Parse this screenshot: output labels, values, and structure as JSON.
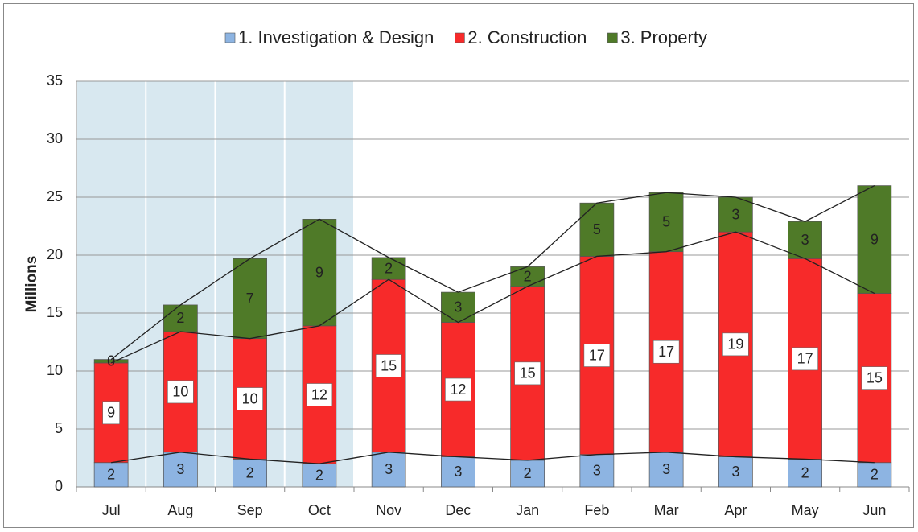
{
  "chart_data": {
    "type": "stacked_bar",
    "categories": [
      "Jul",
      "Aug",
      "Sep",
      "Oct",
      "Nov",
      "Dec",
      "Jan",
      "Feb",
      "Mar",
      "Apr",
      "May",
      "Jun"
    ],
    "y_label": "Millions",
    "ylim": [
      0,
      35
    ],
    "yticks": [
      0,
      5,
      10,
      15,
      20,
      25,
      30,
      35
    ],
    "grid": true,
    "legend": "top",
    "shaded": [
      0,
      1,
      2,
      3
    ],
    "series": [
      {
        "name": "1. Investigation & Design",
        "color": "#8db4e2",
        "values": [
          2.1,
          3.0,
          2.4,
          2.0,
          3.0,
          2.6,
          2.3,
          2.8,
          3.0,
          2.6,
          2.4,
          2.1
        ],
        "value_labels": [
          "2",
          "3",
          "2",
          "2",
          "3",
          "3",
          "2",
          "3",
          "3",
          "3",
          "2",
          "2"
        ]
      },
      {
        "name": "2. Construction",
        "color": "#f72a2a",
        "values": [
          8.6,
          10.4,
          10.4,
          11.9,
          14.9,
          11.6,
          15.0,
          17.1,
          17.3,
          19.4,
          17.3,
          14.6
        ],
        "value_labels": [
          "9",
          "10",
          "10",
          "12",
          "15",
          "12",
          "15",
          "17",
          "17",
          "19",
          "17",
          "15"
        ]
      },
      {
        "name": "3. Property",
        "color": "#4f7a28",
        "values": [
          0.3,
          2.3,
          6.9,
          9.2,
          1.9,
          2.6,
          1.7,
          4.6,
          5.1,
          3.0,
          3.2,
          9.3
        ],
        "value_labels": [
          "0",
          "2",
          "7",
          "9",
          "2",
          "3",
          "2",
          "5",
          "5",
          "3",
          "3",
          "9"
        ]
      }
    ]
  }
}
